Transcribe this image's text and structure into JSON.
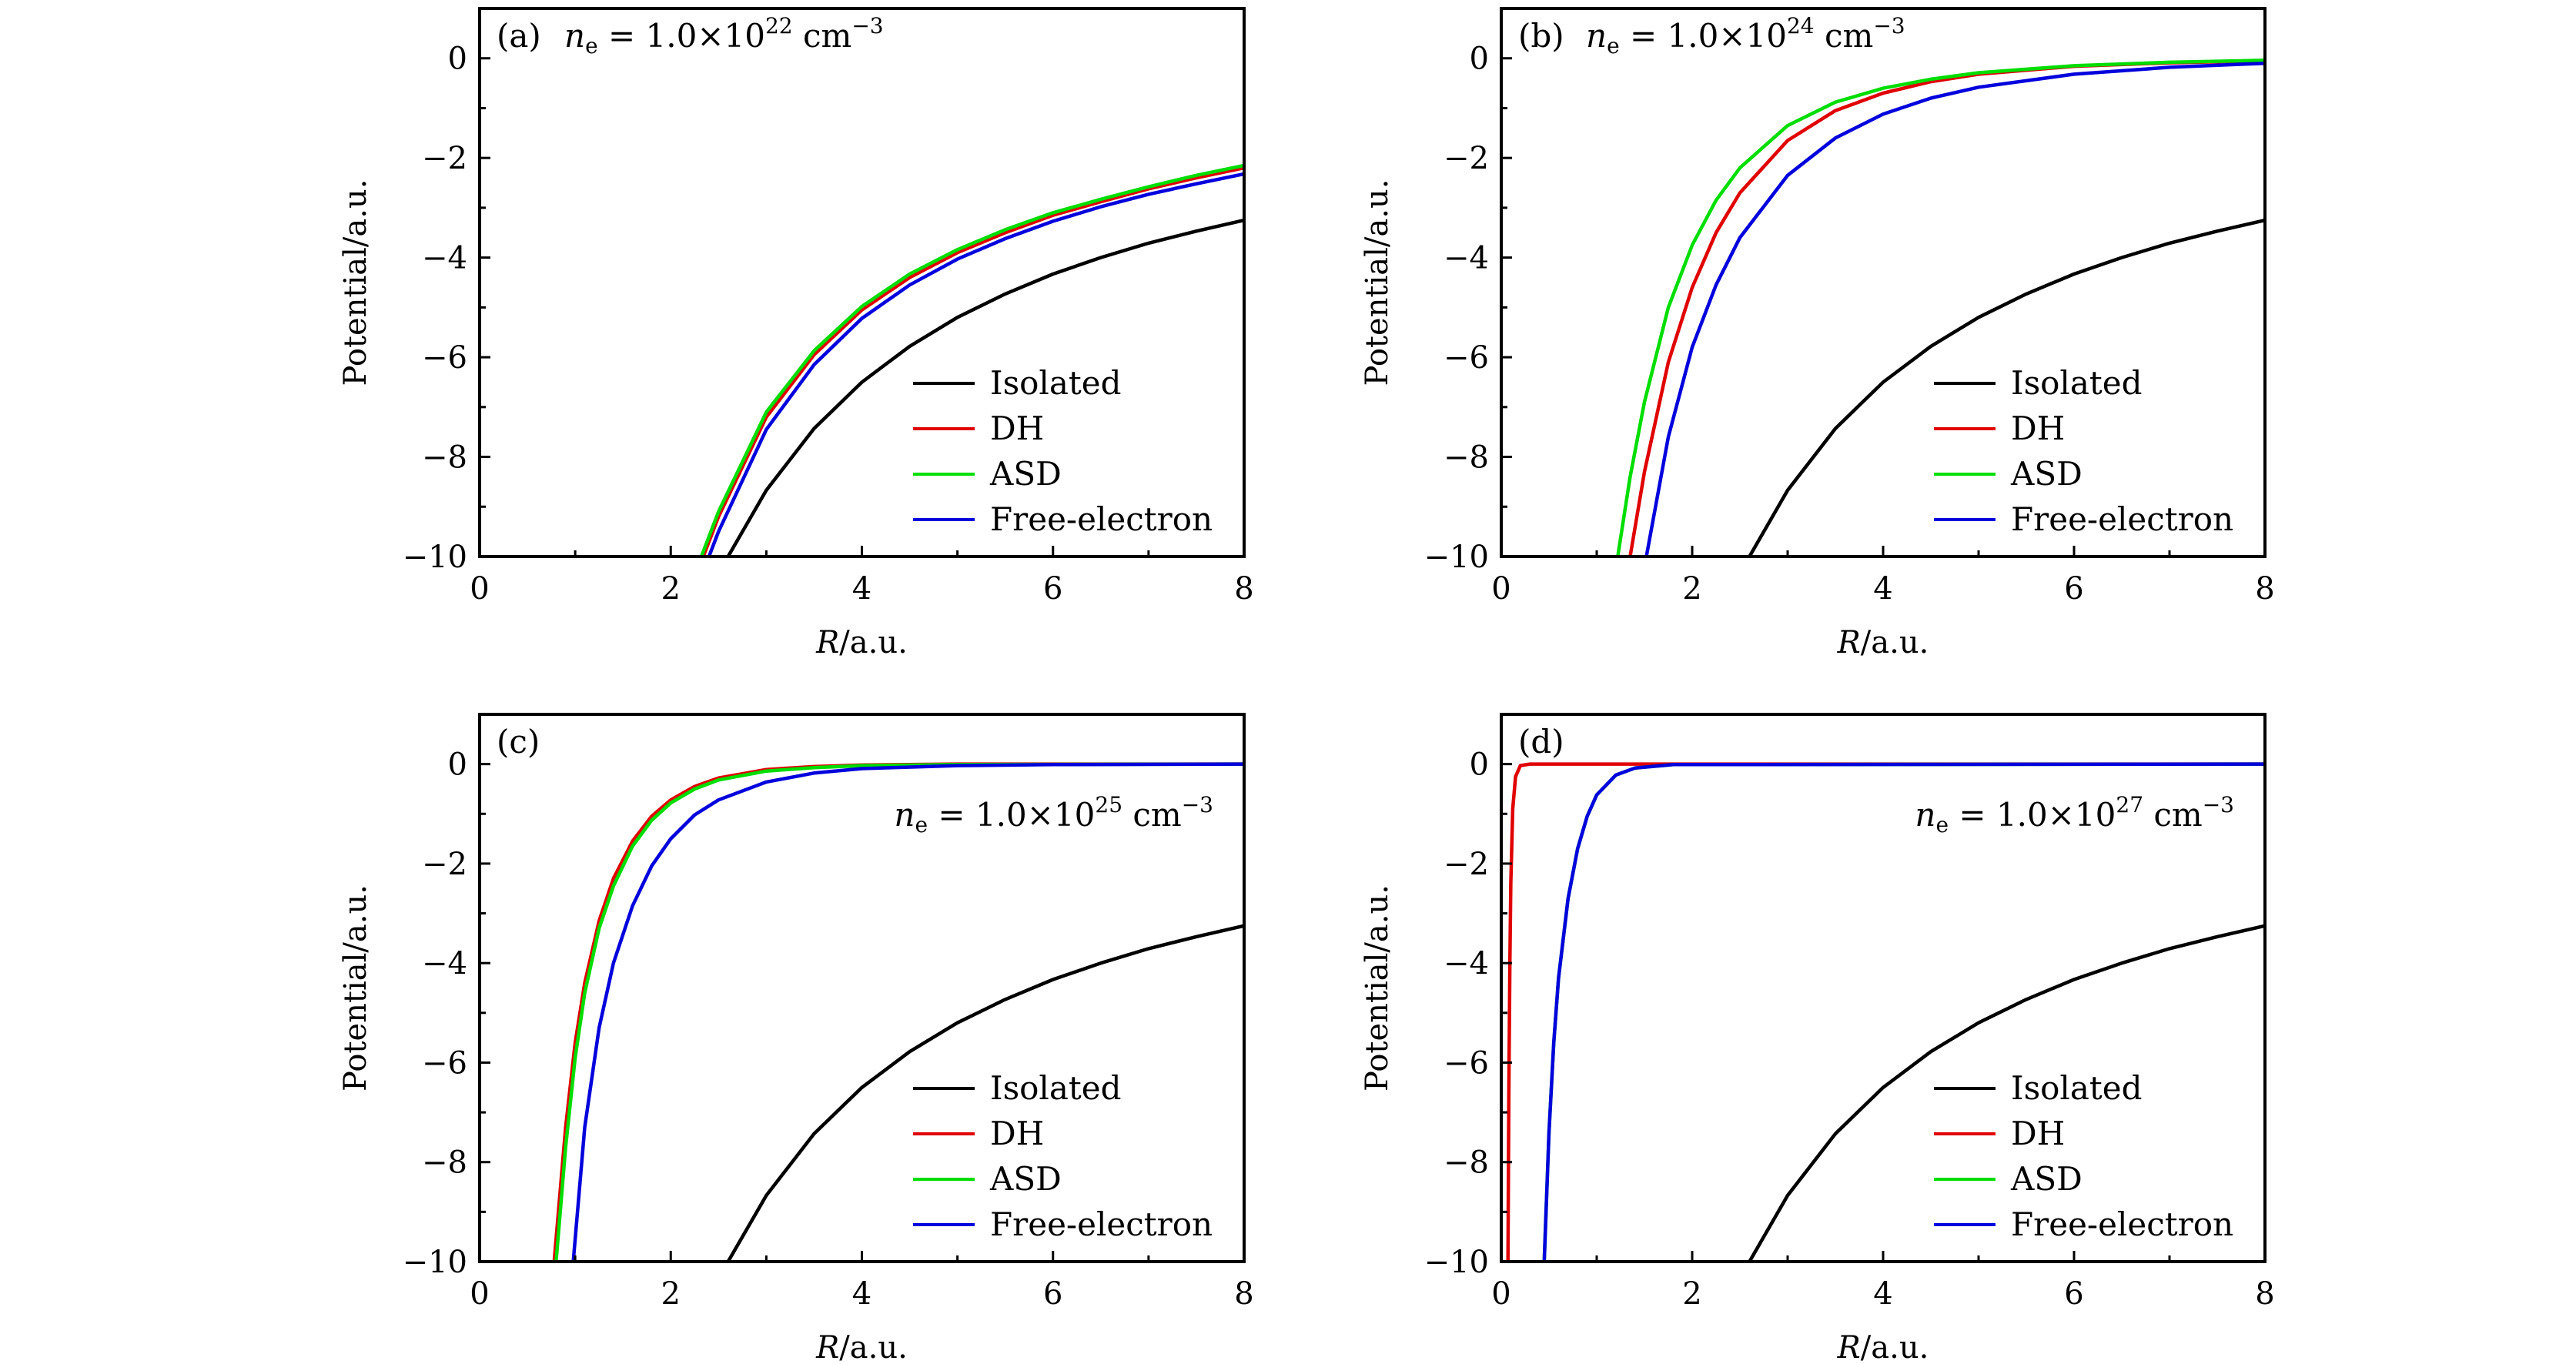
{
  "chart_data": [
    {
      "type": "line",
      "panel": "(a)",
      "annotation": "n_e = 1.0×10^22 cm^-3",
      "annotation_parts": {
        "tag": "(a)",
        "var": "n",
        "sub": "e",
        "eq": " = 1.0×10",
        "exp": "22",
        "unit": " cm",
        "unit_exp": "−3"
      },
      "annotation_placement": "top-left",
      "xlabel": "R/a.u.",
      "ylabel": "Potential/a.u.",
      "xlim": [
        0,
        8
      ],
      "ylim": [
        -10,
        1
      ],
      "xticks": [
        0,
        2,
        4,
        6,
        8
      ],
      "xtick_labels": [
        "0",
        "2",
        "4",
        "6",
        "8"
      ],
      "yticks": [
        0,
        -2,
        -4,
        -6,
        -8,
        -10
      ],
      "ytick_labels": [
        "0",
        "−2",
        "−4",
        "−6",
        "−8",
        "−10"
      ],
      "legend": [
        "Isolated",
        "DH",
        "ASD",
        "Free-electron"
      ],
      "legend_placement": "bottom-right",
      "series": [
        {
          "name": "Isolated",
          "color": "#000000",
          "x": [
            2.6,
            3.0,
            3.5,
            4.0,
            4.5,
            5.0,
            5.5,
            6.0,
            6.5,
            7.0,
            7.5,
            8.0
          ],
          "y": [
            -10,
            -8.67,
            -7.43,
            -6.5,
            -5.78,
            -5.2,
            -4.73,
            -4.33,
            -4.0,
            -3.71,
            -3.47,
            -3.25
          ]
        },
        {
          "name": "DH",
          "color": "#e00000",
          "x": [
            2.34,
            2.5,
            3.0,
            3.5,
            4.0,
            4.5,
            5.0,
            5.5,
            6.0,
            6.5,
            7.0,
            7.5,
            8.0
          ],
          "y": [
            -10,
            -9.2,
            -7.2,
            -5.95,
            -5.05,
            -4.4,
            -3.9,
            -3.5,
            -3.15,
            -2.88,
            -2.62,
            -2.4,
            -2.2
          ]
        },
        {
          "name": "ASD",
          "color": "#00dd00",
          "x": [
            2.32,
            2.5,
            3.0,
            3.5,
            4.0,
            4.5,
            5.0,
            5.5,
            6.0,
            6.5,
            7.0,
            7.5,
            8.0
          ],
          "y": [
            -10,
            -9.1,
            -7.1,
            -5.87,
            -4.98,
            -4.33,
            -3.84,
            -3.44,
            -3.1,
            -2.83,
            -2.58,
            -2.35,
            -2.15
          ]
        },
        {
          "name": "Free-electron",
          "color": "#0000dd",
          "x": [
            2.4,
            2.5,
            3.0,
            3.5,
            4.0,
            4.5,
            5.0,
            5.5,
            6.0,
            6.5,
            7.0,
            7.5,
            8.0
          ],
          "y": [
            -10,
            -9.5,
            -7.45,
            -6.15,
            -5.22,
            -4.55,
            -4.03,
            -3.62,
            -3.27,
            -2.98,
            -2.73,
            -2.52,
            -2.32
          ]
        }
      ]
    },
    {
      "type": "line",
      "panel": "(b)",
      "annotation": "n_e = 1.0×10^24 cm^-3",
      "annotation_parts": {
        "tag": "(b)",
        "var": "n",
        "sub": "e",
        "eq": " = 1.0×10",
        "exp": "24",
        "unit": " cm",
        "unit_exp": "−3"
      },
      "annotation_placement": "top-left",
      "xlabel": "R/a.u.",
      "ylabel": "Potential/a.u.",
      "xlim": [
        0,
        8
      ],
      "ylim": [
        -10,
        1
      ],
      "xticks": [
        0,
        2,
        4,
        6,
        8
      ],
      "xtick_labels": [
        "0",
        "2",
        "4",
        "6",
        "8"
      ],
      "yticks": [
        0,
        -2,
        -4,
        -6,
        -8,
        -10
      ],
      "ytick_labels": [
        "0",
        "−2",
        "−4",
        "−6",
        "−8",
        "−10"
      ],
      "legend": [
        "Isolated",
        "DH",
        "ASD",
        "Free-electron"
      ],
      "legend_placement": "bottom-right",
      "series": [
        {
          "name": "Isolated",
          "color": "#000000",
          "x": [
            2.6,
            3.0,
            3.5,
            4.0,
            4.5,
            5.0,
            5.5,
            6.0,
            6.5,
            7.0,
            7.5,
            8.0
          ],
          "y": [
            -10,
            -8.67,
            -7.43,
            -6.5,
            -5.78,
            -5.2,
            -4.73,
            -4.33,
            -4.0,
            -3.71,
            -3.47,
            -3.25
          ]
        },
        {
          "name": "DH",
          "color": "#e00000",
          "x": [
            1.35,
            1.5,
            1.75,
            2.0,
            2.25,
            2.5,
            3.0,
            3.5,
            4.0,
            4.5,
            5.0,
            6.0,
            7.0,
            8.0
          ],
          "y": [
            -10,
            -8.3,
            -6.1,
            -4.6,
            -3.5,
            -2.7,
            -1.65,
            -1.05,
            -0.7,
            -0.47,
            -0.32,
            -0.16,
            -0.09,
            -0.05
          ]
        },
        {
          "name": "ASD",
          "color": "#00dd00",
          "x": [
            1.22,
            1.35,
            1.5,
            1.75,
            2.0,
            2.25,
            2.5,
            3.0,
            3.5,
            4.0,
            4.5,
            5.0,
            6.0,
            7.0,
            8.0
          ],
          "y": [
            -10,
            -8.4,
            -6.9,
            -5.0,
            -3.75,
            -2.85,
            -2.2,
            -1.35,
            -0.88,
            -0.6,
            -0.42,
            -0.29,
            -0.15,
            -0.08,
            -0.04
          ]
        },
        {
          "name": "Free-electron",
          "color": "#0000dd",
          "x": [
            1.52,
            1.75,
            2.0,
            2.25,
            2.5,
            3.0,
            3.5,
            4.0,
            4.5,
            5.0,
            6.0,
            7.0,
            8.0
          ],
          "y": [
            -10,
            -7.6,
            -5.8,
            -4.55,
            -3.6,
            -2.35,
            -1.6,
            -1.12,
            -0.8,
            -0.58,
            -0.32,
            -0.18,
            -0.1
          ]
        }
      ]
    },
    {
      "type": "line",
      "panel": "(c)",
      "annotation": "n_e = 1.0×10^25 cm^-3",
      "annotation_parts": {
        "tag": "(c)",
        "var": "n",
        "sub": "e",
        "eq": " = 1.0×10",
        "exp": "25",
        "unit": " cm",
        "unit_exp": "−3"
      },
      "annotation_placement": "top-right",
      "xlabel": "R/a.u.",
      "ylabel": "Potential/a.u.",
      "xlim": [
        0,
        8
      ],
      "ylim": [
        -10,
        1
      ],
      "xticks": [
        0,
        2,
        4,
        6,
        8
      ],
      "xtick_labels": [
        "0",
        "2",
        "4",
        "6",
        "8"
      ],
      "yticks": [
        0,
        -2,
        -4,
        -6,
        -8,
        -10
      ],
      "ytick_labels": [
        "0",
        "−2",
        "−4",
        "−6",
        "−8",
        "−10"
      ],
      "legend": [
        "Isolated",
        "DH",
        "ASD",
        "Free-electron"
      ],
      "legend_placement": "bottom-right",
      "series": [
        {
          "name": "Isolated",
          "color": "#000000",
          "x": [
            2.6,
            3.0,
            3.5,
            4.0,
            4.5,
            5.0,
            5.5,
            6.0,
            6.5,
            7.0,
            7.5,
            8.0
          ],
          "y": [
            -10,
            -8.67,
            -7.43,
            -6.5,
            -5.78,
            -5.2,
            -4.73,
            -4.33,
            -4.0,
            -3.71,
            -3.47,
            -3.25
          ]
        },
        {
          "name": "DH",
          "color": "#e00000",
          "x": [
            0.78,
            0.9,
            1.0,
            1.1,
            1.25,
            1.4,
            1.6,
            1.8,
            2.0,
            2.25,
            2.5,
            3.0,
            3.5,
            4.0,
            5.0,
            8.0
          ],
          "y": [
            -10,
            -7.3,
            -5.6,
            -4.4,
            -3.15,
            -2.3,
            -1.55,
            -1.05,
            -0.72,
            -0.45,
            -0.28,
            -0.11,
            -0.05,
            -0.02,
            0,
            0
          ]
        },
        {
          "name": "ASD",
          "color": "#00dd00",
          "x": [
            0.8,
            0.9,
            1.0,
            1.1,
            1.25,
            1.4,
            1.6,
            1.8,
            2.0,
            2.25,
            2.5,
            3.0,
            3.5,
            4.0,
            5.0,
            8.0
          ],
          "y": [
            -10,
            -7.7,
            -5.9,
            -4.6,
            -3.3,
            -2.45,
            -1.65,
            -1.13,
            -0.78,
            -0.5,
            -0.32,
            -0.14,
            -0.07,
            -0.03,
            -0.01,
            0
          ]
        },
        {
          "name": "Free-electron",
          "color": "#0000dd",
          "x": [
            0.98,
            1.1,
            1.25,
            1.4,
            1.6,
            1.8,
            2.0,
            2.25,
            2.5,
            3.0,
            3.5,
            4.0,
            5.0,
            6.0,
            8.0
          ],
          "y": [
            -10,
            -7.3,
            -5.3,
            -4.0,
            -2.85,
            -2.05,
            -1.5,
            -1.02,
            -0.72,
            -0.36,
            -0.18,
            -0.09,
            -0.03,
            -0.01,
            0
          ]
        }
      ]
    },
    {
      "type": "line",
      "panel": "(d)",
      "annotation": "n_e = 1.0×10^27 cm^-3",
      "annotation_parts": {
        "tag": "(d)",
        "var": "n",
        "sub": "e",
        "eq": " = 1.0×10",
        "exp": "27",
        "unit": " cm",
        "unit_exp": "−3"
      },
      "annotation_placement": "top-right",
      "xlabel": "R/a.u.",
      "ylabel": "Potential/a.u.",
      "xlim": [
        0,
        8
      ],
      "ylim": [
        -10,
        1
      ],
      "xticks": [
        0,
        2,
        4,
        6,
        8
      ],
      "xtick_labels": [
        "0",
        "2",
        "4",
        "6",
        "8"
      ],
      "yticks": [
        0,
        -2,
        -4,
        -6,
        -8,
        -10
      ],
      "ytick_labels": [
        "0",
        "−2",
        "−4",
        "−6",
        "−8",
        "−10"
      ],
      "legend": [
        "Isolated",
        "DH",
        "ASD",
        "Free-electron"
      ],
      "legend_placement": "bottom-right",
      "series": [
        {
          "name": "Isolated",
          "color": "#000000",
          "x": [
            2.6,
            3.0,
            3.5,
            4.0,
            4.5,
            5.0,
            5.5,
            6.0,
            6.5,
            7.0,
            7.5,
            8.0
          ],
          "y": [
            -10,
            -8.67,
            -7.43,
            -6.5,
            -5.78,
            -5.2,
            -4.73,
            -4.33,
            -4.0,
            -3.71,
            -3.47,
            -3.25
          ]
        },
        {
          "name": "DH",
          "color": "#e00000",
          "x": [
            0.07,
            0.08,
            0.09,
            0.1,
            0.12,
            0.15,
            0.2,
            0.3,
            8.0
          ],
          "y": [
            -10,
            -6.5,
            -4.0,
            -2.4,
            -0.9,
            -0.25,
            -0.03,
            0,
            0
          ]
        },
        {
          "name": "ASD",
          "color": "#00dd00",
          "x": [
            0.45,
            0.5,
            0.55,
            0.6,
            0.7,
            0.8,
            0.9,
            1.0,
            1.2,
            1.4,
            1.8,
            8.0
          ],
          "y": [
            -10,
            -7.4,
            -5.6,
            -4.3,
            -2.7,
            -1.7,
            -1.05,
            -0.62,
            -0.22,
            -0.08,
            -0.01,
            0
          ]
        },
        {
          "name": "Free-electron",
          "color": "#0000dd",
          "x": [
            0.45,
            0.5,
            0.55,
            0.6,
            0.7,
            0.8,
            0.9,
            1.0,
            1.2,
            1.4,
            1.8,
            8.0
          ],
          "y": [
            -10,
            -7.4,
            -5.6,
            -4.3,
            -2.7,
            -1.7,
            -1.05,
            -0.62,
            -0.22,
            -0.08,
            -0.01,
            0
          ]
        }
      ]
    }
  ]
}
